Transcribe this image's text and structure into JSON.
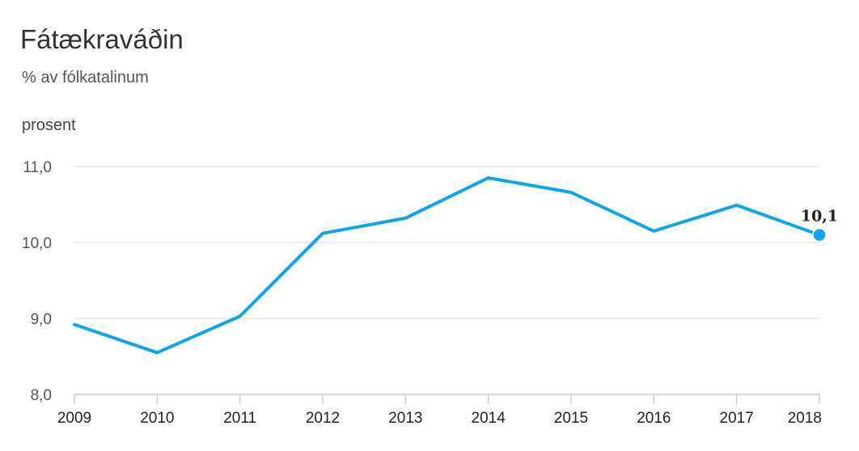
{
  "chart_data": {
    "type": "line",
    "title": "Fátækraváðin",
    "subtitle": "% av fólkatalinum",
    "ylabel": "prosent",
    "xlabel": "",
    "categories": [
      "2009",
      "2010",
      "2011",
      "2012",
      "2013",
      "2014",
      "2015",
      "2016",
      "2017",
      "2018"
    ],
    "series": [
      {
        "values": [
          8.92,
          8.55,
          9.03,
          10.12,
          10.32,
          10.85,
          10.66,
          10.15,
          10.49,
          10.1
        ]
      }
    ],
    "ylim": [
      8.0,
      11.0
    ],
    "yticks": [
      "8,0",
      "9,0",
      "10,0",
      "11,0"
    ],
    "ytick_values": [
      8.0,
      9.0,
      10.0,
      11.0
    ],
    "grid": true,
    "last_point_label": "10,1",
    "line_color": "#0ea5e9",
    "grid_color": "#e6e6e6",
    "axis_color": "#cccccc"
  }
}
